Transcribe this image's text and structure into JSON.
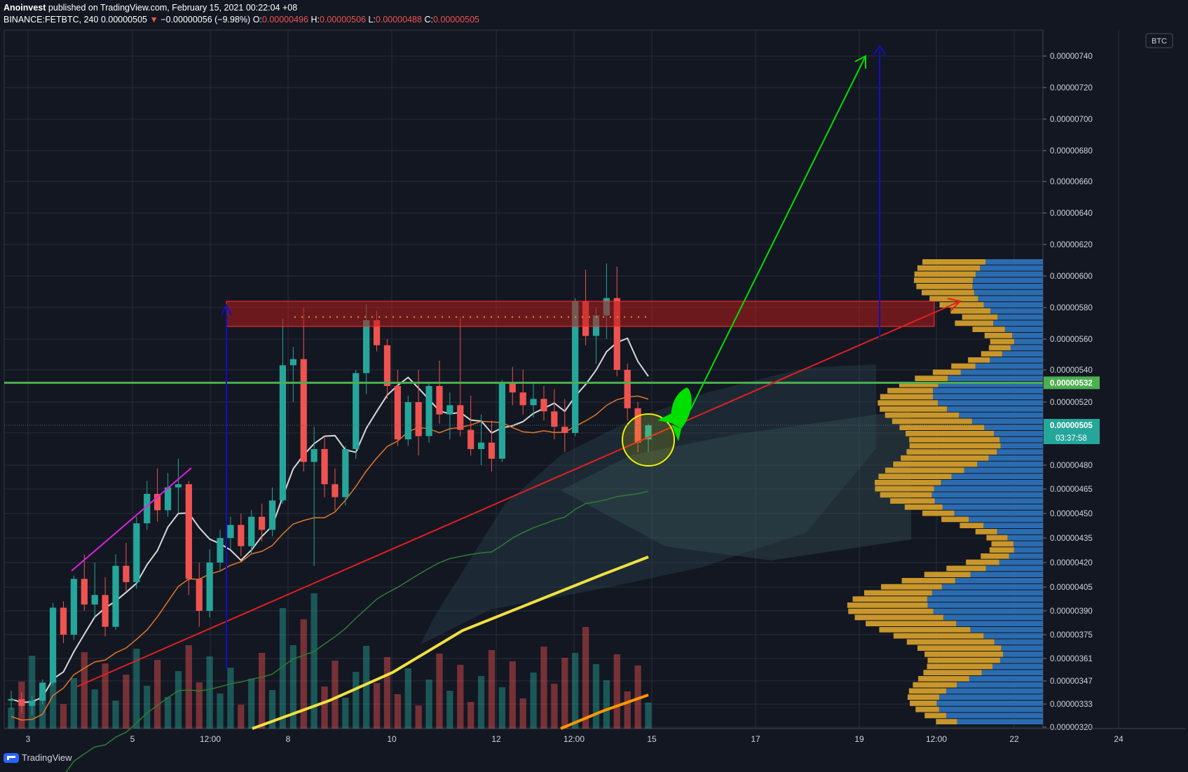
{
  "header": {
    "author": "Anoinvest",
    "published_text": "published on TradingView.com, February 15, 2021 00:22:04 +08",
    "symbol": "BINANCE:FETBTC, 240",
    "last_price": "0.00000505",
    "change_arrow": "▼",
    "change": "−0.00000056 (−9.98%)",
    "o_label": "O:",
    "o_value": "0.00000496",
    "h_label": "H:",
    "h_value": "0.00000506",
    "l_label": "L:",
    "l_value": "0.00000488",
    "c_label": "C:",
    "c_value": "0.00000505"
  },
  "footer": {
    "brand": "TradingView",
    "icon": "tradingview-logo-icon"
  },
  "colors": {
    "background": "#131722",
    "grid": "#2a2e39",
    "up": "#26a69a",
    "down": "#ef5350",
    "resistance_zone": "#b71c1c",
    "support_line": "#4caf50",
    "target_arrow_green": "#00e000",
    "target_arrow_blue": "#1010c0",
    "rocket": "#00e000",
    "highlight_circle": "#f0f000",
    "ma_white": "#d8d8d8",
    "ma_orange": "#e0782a",
    "ma_yellow": "#f0e040",
    "volume_profile_up": "#2b6cb0",
    "volume_profile_down": "#c8962a"
  },
  "chart_data": {
    "type": "candlestick",
    "title": "BINANCE:FETBTC, 240",
    "currency_label": "BTC",
    "y_range": [
      3.18e-06,
      7.5e-06
    ],
    "y_ticks": [
      "0.00000740",
      "0.00000720",
      "0.00000700",
      "0.00000680",
      "0.00000660",
      "0.00000640",
      "0.00000620",
      "0.00000600",
      "0.00000580",
      "0.00000560",
      "0.00000540",
      "0.00000520",
      "0.00000500",
      "0.00000480",
      "0.00000465",
      "0.00000450",
      "0.00000435",
      "0.00000420",
      "0.00000405",
      "0.00000390",
      "0.00000375",
      "0.00000361",
      "0.00000347",
      "0.00000333",
      "0.00000320"
    ],
    "x_ticks": [
      "3",
      "5",
      "12:00",
      "8",
      "10",
      "12",
      "12:00",
      "15",
      "17",
      "19",
      "12:00",
      "22",
      "24"
    ],
    "price_labels": [
      {
        "value": "0.00000532",
        "role": "support-line"
      },
      {
        "value": "0.00000505",
        "role": "last-price"
      },
      {
        "value": "03:37:58",
        "role": "bar-countdown"
      }
    ],
    "candles": [
      {
        "o": 3.35e-06,
        "h": 3.41e-06,
        "l": 3.3e-06,
        "c": 3.36e-06
      },
      {
        "o": 3.36e-06,
        "h": 3.4e-06,
        "l": 3.28e-06,
        "c": 3.32e-06
      },
      {
        "o": 3.32e-06,
        "h": 3.38e-06,
        "l": 3.27e-06,
        "c": 3.35e-06
      },
      {
        "o": 3.35e-06,
        "h": 3.48e-06,
        "l": 3.33e-06,
        "c": 3.46e-06
      },
      {
        "o": 3.46e-06,
        "h": 3.95e-06,
        "l": 3.44e-06,
        "c": 3.92e-06
      },
      {
        "o": 3.92e-06,
        "h": 3.96e-06,
        "l": 3.7e-06,
        "c": 3.75e-06
      },
      {
        "o": 3.75e-06,
        "h": 4.12e-06,
        "l": 3.72e-06,
        "c": 4.1e-06
      },
      {
        "o": 4.1e-06,
        "h": 4.25e-06,
        "l": 3.9e-06,
        "c": 3.94e-06
      },
      {
        "o": 3.94e-06,
        "h": 4.2e-06,
        "l": 3.85e-06,
        "c": 4e-06
      },
      {
        "o": 4e-06,
        "h": 4.11e-06,
        "l": 3.74e-06,
        "c": 3.8e-06
      },
      {
        "o": 3.8e-06,
        "h": 4.25e-06,
        "l": 3.78e-06,
        "c": 4.18e-06
      },
      {
        "o": 4.18e-06,
        "h": 4.32e-06,
        "l": 4.02e-06,
        "c": 4.08e-06
      },
      {
        "o": 4.08e-06,
        "h": 4.48e-06,
        "l": 4.04e-06,
        "c": 4.44e-06
      },
      {
        "o": 4.44e-06,
        "h": 4.7e-06,
        "l": 4.4e-06,
        "c": 4.62e-06
      },
      {
        "o": 4.62e-06,
        "h": 4.78e-06,
        "l": 4.45e-06,
        "c": 4.52e-06
      },
      {
        "o": 4.52e-06,
        "h": 4.75e-06,
        "l": 4.48e-06,
        "c": 4.66e-06
      },
      {
        "o": 4.66e-06,
        "h": 4.84e-06,
        "l": 4.5e-06,
        "c": 4.68e-06
      },
      {
        "o": 4.68e-06,
        "h": 4.7e-06,
        "l": 4e-06,
        "c": 4.1e-06
      },
      {
        "o": 4.1e-06,
        "h": 4.2e-06,
        "l": 3.8e-06,
        "c": 3.9e-06
      },
      {
        "o": 3.9e-06,
        "h": 4.28e-06,
        "l": 3.86e-06,
        "c": 4.2e-06
      },
      {
        "o": 4.2e-06,
        "h": 4.4e-06,
        "l": 4.15e-06,
        "c": 4.35e-06
      },
      {
        "o": 4.35e-06,
        "h": 4.48e-06,
        "l": 4.28e-06,
        "c": 4.43e-06
      },
      {
        "o": 4.43e-06,
        "h": 4.5e-06,
        "l": 4.24e-06,
        "c": 4.3e-06
      },
      {
        "o": 4.3e-06,
        "h": 4.52e-06,
        "l": 4.25e-06,
        "c": 4.48e-06
      },
      {
        "o": 4.48e-06,
        "h": 4.56e-06,
        "l": 4.33e-06,
        "c": 4.4e-06
      },
      {
        "o": 4.4e-06,
        "h": 4.66e-06,
        "l": 4.36e-06,
        "c": 4.58e-06
      },
      {
        "o": 4.58e-06,
        "h": 5.73e-06,
        "l": 4.56e-06,
        "c": 5.43e-06
      },
      {
        "o": 5.43e-06,
        "h": 5.55e-06,
        "l": 5.2e-06,
        "c": 5.47e-06
      },
      {
        "o": 5.47e-06,
        "h": 5.8e-06,
        "l": 4.76e-06,
        "c": 4.82e-06
      },
      {
        "o": 4.82e-06,
        "h": 5.04e-06,
        "l": 4.18e-06,
        "c": 4.9e-06
      },
      {
        "o": 4.9e-06,
        "h": 4.98e-06,
        "l": 4.6e-06,
        "c": 4.68e-06
      },
      {
        "o": 4.68e-06,
        "h": 4.78e-06,
        "l": 4.52e-06,
        "c": 4.6e-06
      },
      {
        "o": 4.6e-06,
        "h": 4.92e-06,
        "l": 4.55e-06,
        "c": 4.9e-06
      },
      {
        "o": 4.9e-06,
        "h": 5.4e-06,
        "l": 4.84e-06,
        "c": 5.38e-06
      },
      {
        "o": 5.38e-06,
        "h": 5.82e-06,
        "l": 5.25e-06,
        "c": 5.72e-06
      },
      {
        "o": 5.72e-06,
        "h": 5.78e-06,
        "l": 5.52e-06,
        "c": 5.56e-06
      },
      {
        "o": 5.56e-06,
        "h": 5.6e-06,
        "l": 5.22e-06,
        "c": 5.3e-06
      },
      {
        "o": 5.3e-06,
        "h": 5.4e-06,
        "l": 4.92e-06,
        "c": 4.96e-06
      },
      {
        "o": 4.96e-06,
        "h": 5.24e-06,
        "l": 4.92e-06,
        "c": 5.2e-06
      },
      {
        "o": 5.2e-06,
        "h": 5.4e-06,
        "l": 4.86e-06,
        "c": 4.98e-06
      },
      {
        "o": 4.98e-06,
        "h": 5.32e-06,
        "l": 4.94e-06,
        "c": 5.3e-06
      },
      {
        "o": 5.3e-06,
        "h": 5.46e-06,
        "l": 5.06e-06,
        "c": 5.12e-06
      },
      {
        "o": 5.12e-06,
        "h": 5.26e-06,
        "l": 4.96e-06,
        "c": 5.18e-06
      },
      {
        "o": 5.18e-06,
        "h": 5.74e-06,
        "l": 4.98e-06,
        "c": 5.02e-06
      },
      {
        "o": 5.02e-06,
        "h": 5.24e-06,
        "l": 4.86e-06,
        "c": 4.9e-06
      },
      {
        "o": 4.9e-06,
        "h": 5.12e-06,
        "l": 4.8e-06,
        "c": 4.94e-06
      },
      {
        "o": 4.94e-06,
        "h": 5.08e-06,
        "l": 4.76e-06,
        "c": 4.84e-06
      },
      {
        "o": 4.84e-06,
        "h": 5.34e-06,
        "l": 4.82e-06,
        "c": 5.32e-06
      },
      {
        "o": 5.32e-06,
        "h": 5.42e-06,
        "l": 5.18e-06,
        "c": 5.26e-06
      },
      {
        "o": 5.26e-06,
        "h": 5.4e-06,
        "l": 5.12e-06,
        "c": 5.18e-06
      },
      {
        "o": 5.18e-06,
        "h": 5.32e-06,
        "l": 5.1e-06,
        "c": 5.22e-06
      },
      {
        "o": 5.22e-06,
        "h": 5.3e-06,
        "l": 5.08e-06,
        "c": 5.14e-06
      },
      {
        "o": 5.14e-06,
        "h": 5.28e-06,
        "l": 4.96e-06,
        "c": 5.04e-06
      },
      {
        "o": 5.04e-06,
        "h": 5.22e-06,
        "l": 4.88e-06,
        "c": 5e-06
      },
      {
        "o": 5e-06,
        "h": 5.86e-06,
        "l": 4.98e-06,
        "c": 5.84e-06
      },
      {
        "o": 5.84e-06,
        "h": 6.04e-06,
        "l": 5.56e-06,
        "c": 5.62e-06
      },
      {
        "o": 5.62e-06,
        "h": 5.8e-06,
        "l": 5.44e-06,
        "c": 5.75e-06
      },
      {
        "o": 5.75e-06,
        "h": 6.08e-06,
        "l": 5.6e-06,
        "c": 5.86e-06
      },
      {
        "o": 5.86e-06,
        "h": 6.06e-06,
        "l": 5.36e-06,
        "c": 5.4e-06
      },
      {
        "o": 5.4e-06,
        "h": 5.44e-06,
        "l": 5.08e-06,
        "c": 5.16e-06
      },
      {
        "o": 5.16e-06,
        "h": 5.2e-06,
        "l": 4.88e-06,
        "c": 4.94e-06
      },
      {
        "o": 4.96e-06,
        "h": 5.06e-06,
        "l": 4.88e-06,
        "c": 5.05e-06
      }
    ]
  },
  "annotations": {
    "resistance_zone": {
      "from": 5.68e-06,
      "to": 5.84e-06
    },
    "support_line": {
      "value": 5.32e-06
    },
    "targets": {
      "green_arrow_top": 7.4e-06,
      "blue_arrow_top": 7.45e-06
    }
  }
}
